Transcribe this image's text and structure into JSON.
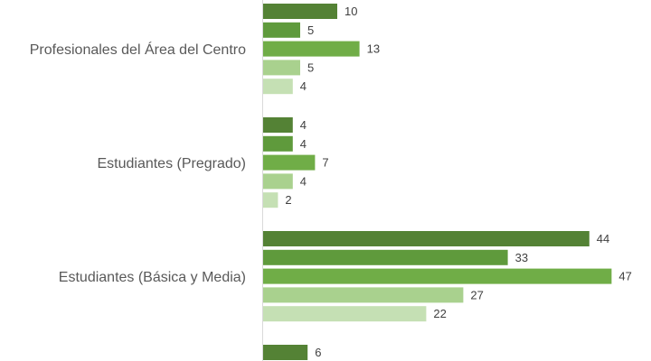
{
  "chart_data": {
    "type": "bar",
    "orientation": "horizontal",
    "categories": [
      "Profesionales del Área del Centro",
      "Estudiantes (Pregrado)",
      "Estudiantes (Básica y Media)",
      ""
    ],
    "series": [
      {
        "color": "#548235",
        "values": [
          10,
          4,
          44,
          6
        ]
      },
      {
        "color": "#5f9a3c",
        "values": [
          5,
          4,
          33,
          null
        ]
      },
      {
        "color": "#70ad47",
        "values": [
          13,
          7,
          47,
          null
        ]
      },
      {
        "color": "#a9d18e",
        "values": [
          5,
          4,
          27,
          null
        ]
      },
      {
        "color": "#c5e0b4",
        "values": [
          4,
          2,
          22,
          null
        ]
      }
    ],
    "grid": false,
    "legend": "none",
    "title": "",
    "xlabel": "",
    "ylabel": ""
  }
}
